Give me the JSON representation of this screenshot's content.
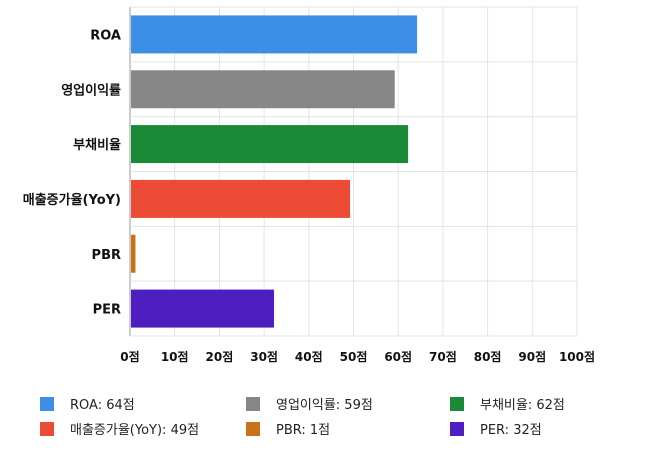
{
  "chart_data": {
    "type": "bar",
    "orientation": "horizontal",
    "categories": [
      "ROA",
      "영업이익률",
      "부채비율",
      "매출증가율(YoY)",
      "PBR",
      "PER"
    ],
    "values": [
      64,
      59,
      62,
      49,
      1,
      32
    ],
    "colors": [
      "#3d8ee6",
      "#878787",
      "#1b8a36",
      "#ec4b36",
      "#c97319",
      "#4e1ec0"
    ],
    "x_ticks": [
      "0점",
      "10점",
      "20점",
      "30점",
      "40점",
      "50점",
      "60점",
      "70점",
      "80점",
      "90점",
      "100점"
    ],
    "xlim": [
      0,
      100
    ],
    "grid": true,
    "legend_position": "bottom",
    "legend": [
      "ROA: 64점",
      "영업이익률: 59점",
      "부채비율: 62점",
      "매출증가율(YoY): 49점",
      "PBR: 1점",
      "PER: 32점"
    ]
  }
}
